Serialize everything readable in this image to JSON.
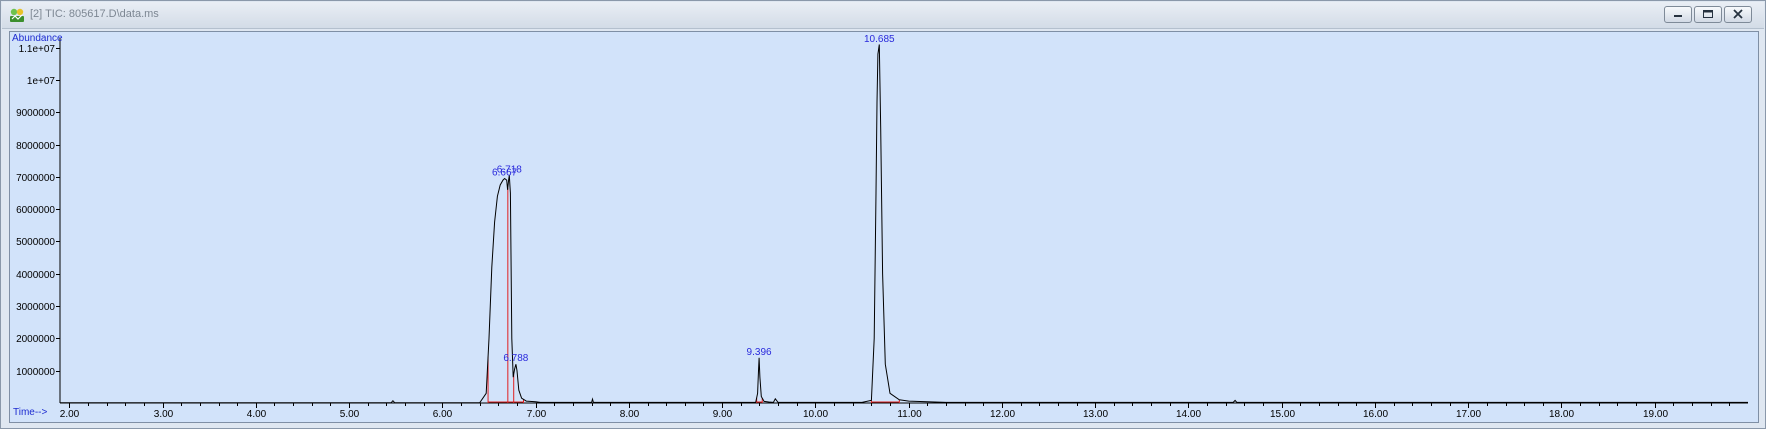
{
  "window": {
    "title": "[2] TIC: 805617.D\\data.ms",
    "icons": {
      "app": "chromatogram-app-icon",
      "minimize": "minimize-icon",
      "restore": "restore-icon",
      "close": "close-icon"
    }
  },
  "colors": {
    "plot_bg": "#d2e3fa",
    "trace": "#000000",
    "baseline_marker": "#e02020",
    "label_blue": "#2a2adc"
  },
  "chart_data": {
    "type": "line",
    "title": "",
    "ylabel": "Abundance",
    "xlabel": "Time-->",
    "xlim": [
      1.9,
      20.0
    ],
    "ylim": [
      0,
      11300000
    ],
    "x_ticks": [
      "2.00",
      "3.00",
      "4.00",
      "5.00",
      "6.00",
      "7.00",
      "8.00",
      "9.00",
      "10.00",
      "11.00",
      "12.00",
      "13.00",
      "14.00",
      "15.00",
      "16.00",
      "17.00",
      "18.00",
      "19.00"
    ],
    "x_tick_values": [
      2,
      3,
      4,
      5,
      6,
      7,
      8,
      9,
      10,
      11,
      12,
      13,
      14,
      15,
      16,
      17,
      18,
      19
    ],
    "y_ticks": [
      "1000000",
      "2000000",
      "3000000",
      "4000000",
      "5000000",
      "6000000",
      "7000000",
      "8000000",
      "9000000",
      "1e+07",
      "1.1e+07"
    ],
    "y_tick_values": [
      1000000,
      2000000,
      3000000,
      4000000,
      5000000,
      6000000,
      7000000,
      8000000,
      9000000,
      10000000,
      11000000
    ],
    "series": [
      {
        "x": [
          1.9,
          5.45,
          5.47,
          5.49,
          6.4,
          6.47,
          6.5,
          6.53,
          6.56,
          6.59,
          6.62,
          6.65,
          6.667,
          6.69,
          6.7,
          6.71,
          6.718,
          6.73,
          6.745,
          6.76,
          6.775,
          6.788,
          6.8,
          6.82,
          6.85,
          6.9,
          7.0,
          7.05,
          7.6,
          7.61,
          7.62,
          9.36,
          9.38,
          9.39,
          9.396,
          9.405,
          9.42,
          9.45,
          9.5,
          9.55,
          9.57,
          9.6,
          10.5,
          10.6,
          10.63,
          10.65,
          10.66,
          10.67,
          10.685,
          10.7,
          10.72,
          10.75,
          10.8,
          10.9,
          11.0,
          11.4,
          14.48,
          14.5,
          14.52,
          20.0
        ],
        "y": [
          5000,
          5000,
          70000,
          5000,
          5000,
          300000,
          2000000,
          4200000,
          5600000,
          6400000,
          6750000,
          6900000,
          6950000,
          6900000,
          6600000,
          6900000,
          7050000,
          6500000,
          2000000,
          800000,
          1050000,
          1200000,
          1000000,
          400000,
          150000,
          60000,
          40000,
          20000,
          20000,
          120000,
          20000,
          20000,
          300000,
          1000000,
          1400000,
          800000,
          200000,
          50000,
          30000,
          20000,
          130000,
          20000,
          20000,
          80000,
          2000000,
          6500000,
          9300000,
          10800000,
          11100000,
          8500000,
          4000000,
          1200000,
          300000,
          100000,
          60000,
          20000,
          20000,
          80000,
          20000,
          20000
        ]
      }
    ],
    "peak_labels": [
      {
        "text": "6.667",
        "x": 6.667,
        "y": 6950000
      },
      {
        "text": "6.718",
        "x": 6.718,
        "y": 7050000
      },
      {
        "text": "6.788",
        "x": 6.788,
        "y": 1200000
      },
      {
        "text": "9.396",
        "x": 9.396,
        "y": 1400000
      },
      {
        "text": "10.685",
        "x": 10.685,
        "y": 11100000
      }
    ],
    "integration_markers": [
      6.49,
      6.702,
      6.765,
      6.87,
      9.37,
      9.43,
      10.6,
      10.9
    ],
    "grid": false
  }
}
